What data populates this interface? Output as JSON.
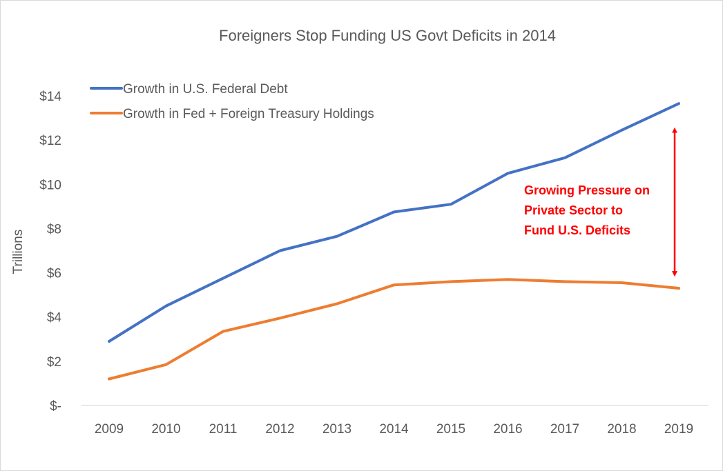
{
  "chart_data": {
    "type": "line",
    "title": "Foreigners Stop Funding US Govt Deficits in 2014",
    "xlabel": "",
    "ylabel": "Trillions",
    "categories": [
      "2009",
      "2010",
      "2011",
      "2012",
      "2013",
      "2014",
      "2015",
      "2016",
      "2017",
      "2018",
      "2019"
    ],
    "ylim": [
      0,
      14
    ],
    "yticks": [
      0,
      2,
      4,
      6,
      8,
      10,
      12,
      14
    ],
    "ytick_labels": [
      "$-",
      "$2",
      "$4",
      "$6",
      "$8",
      "$10",
      "$12",
      "$14"
    ],
    "grid": false,
    "legend_position": "top-left",
    "series": [
      {
        "name": "Growth in U.S. Federal Debt",
        "color": "#4472c4",
        "values": [
          2.9,
          4.5,
          5.75,
          7.0,
          7.65,
          8.75,
          9.1,
          10.5,
          11.2,
          12.45,
          13.65
        ]
      },
      {
        "name": "Growth in Fed + Foreign Treasury Holdings",
        "color": "#ed7d31",
        "values": [
          1.2,
          1.85,
          3.35,
          3.95,
          4.6,
          5.45,
          5.6,
          5.7,
          5.6,
          5.55,
          5.3
        ]
      }
    ],
    "annotations": [
      {
        "lines": [
          "Growing Pressure on",
          "Private Sector to",
          "Fund U.S. Deficits"
        ],
        "color": "#ff0000",
        "arrow_category": "2019",
        "arrow_range": [
          5.95,
          12.45
        ]
      }
    ]
  }
}
